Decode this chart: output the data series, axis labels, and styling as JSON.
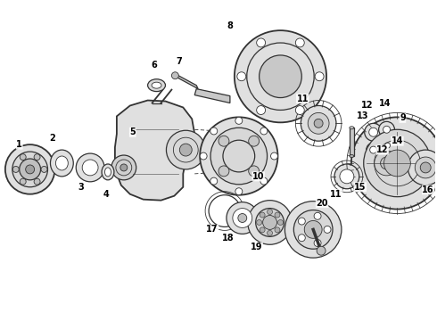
{
  "background_color": "#ffffff",
  "fig_width": 4.9,
  "fig_height": 3.6,
  "dpi": 100,
  "line_color": "#333333",
  "label_fontsize": 7,
  "label_fontweight": "bold"
}
